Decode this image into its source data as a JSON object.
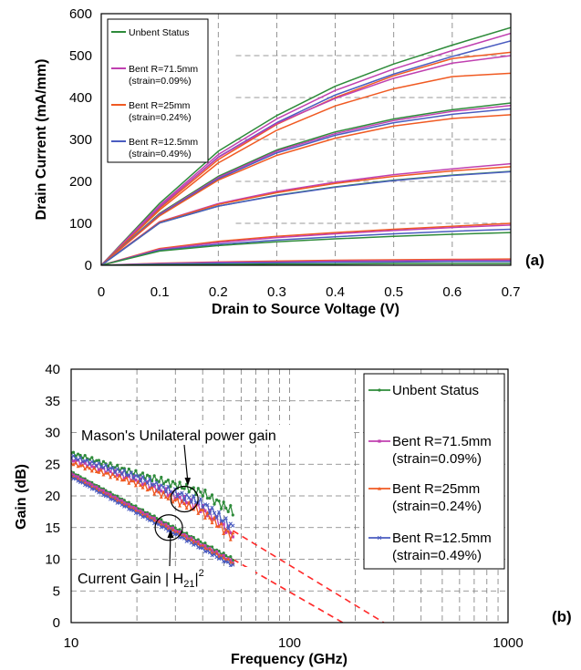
{
  "colors": {
    "unbent": "#2e8b3a",
    "bent_71_5": "#c040b0",
    "bent_25": "#f05a22",
    "bent_12_5": "#4a5cc0",
    "extrapolation": "#ff2a2a"
  },
  "chart_data": [
    {
      "type": "line",
      "panel_label": "(a)",
      "xlabel": "Drain to Source Voltage (V)",
      "ylabel": "Drain Current (mA/mm)",
      "xlim": [
        0,
        0.7
      ],
      "ylim": [
        0,
        600
      ],
      "x_ticks": [
        "0",
        "0.1",
        "0.2",
        "0.3",
        "0.4",
        "0.5",
        "0.6",
        "0.7"
      ],
      "y_ticks": [
        "0",
        "100",
        "200",
        "300",
        "400",
        "500",
        "600"
      ],
      "grid": "dashed, upper-right",
      "legend_position": "top-left",
      "legend": [
        {
          "line1": "Unbent Status",
          "line2": "",
          "color_key": "unbent"
        },
        {
          "line1": "Bent R=71.5mm",
          "line2": "(strain=0.09%)",
          "color_key": "bent_71_5"
        },
        {
          "line1": "Bent R=25mm",
          "line2": "(strain=0.24%)",
          "color_key": "bent_25"
        },
        {
          "line1": "Bent R=12.5mm",
          "line2": "(strain=0.49%)",
          "color_key": "bent_12_5"
        }
      ],
      "x": [
        0,
        0.1,
        0.2,
        0.3,
        0.4,
        0.5,
        0.6,
        0.7
      ],
      "series": [
        {
          "color_key": "unbent",
          "values": [
            0,
            148,
            272,
            357,
            427,
            480,
            525,
            567
          ]
        },
        {
          "color_key": "bent_71_5",
          "values": [
            0,
            143,
            264,
            349,
            417,
            468,
            512,
            553
          ]
        },
        {
          "color_key": "bent_25",
          "values": [
            0,
            136,
            252,
            336,
            400,
            452,
            493,
            508
          ]
        },
        {
          "color_key": "bent_12_5",
          "values": [
            0,
            139,
            258,
            340,
            406,
            456,
            498,
            535
          ]
        },
        {
          "color_key": "bent_71_5",
          "values": [
            0,
            140,
            257,
            338,
            398,
            446,
            482,
            500
          ]
        },
        {
          "color_key": "bent_25",
          "values": [
            0,
            132,
            244,
            322,
            380,
            421,
            450,
            458
          ]
        },
        {
          "color_key": "unbent",
          "values": [
            0,
            124,
            212,
            275,
            318,
            349,
            371,
            387
          ]
        },
        {
          "color_key": "bent_71_5",
          "values": [
            0,
            122,
            209,
            272,
            314,
            345,
            367,
            381
          ]
        },
        {
          "color_key": "bent_12_5",
          "values": [
            0,
            120,
            206,
            268,
            310,
            340,
            360,
            373
          ]
        },
        {
          "color_key": "bent_25",
          "values": [
            0,
            118,
            203,
            262,
            303,
            332,
            350,
            359
          ]
        },
        {
          "color_key": "bent_71_5",
          "values": [
            0,
            104,
            147,
            176,
            198,
            216,
            230,
            242
          ]
        },
        {
          "color_key": "bent_25",
          "values": [
            0,
            103,
            145,
            173,
            195,
            212,
            225,
            235
          ]
        },
        {
          "color_key": "unbent",
          "values": [
            0,
            101,
            141,
            167,
            187,
            203,
            215,
            224
          ]
        },
        {
          "color_key": "bent_12_5",
          "values": [
            0,
            101,
            141,
            166,
            186,
            202,
            214,
            223
          ]
        },
        {
          "color_key": "bent_25",
          "values": [
            0,
            40,
            57,
            69,
            78,
            86,
            93,
            100
          ]
        },
        {
          "color_key": "bent_71_5",
          "values": [
            0,
            38,
            54,
            66,
            75,
            83,
            90,
            96
          ]
        },
        {
          "color_key": "bent_12_5",
          "values": [
            0,
            36,
            50,
            60,
            68,
            75,
            81,
            86
          ]
        },
        {
          "color_key": "unbent",
          "values": [
            0,
            34,
            47,
            56,
            63,
            69,
            74,
            78
          ]
        },
        {
          "color_key": "bent_25",
          "values": [
            0,
            5,
            8,
            10,
            12,
            13,
            14,
            15
          ]
        },
        {
          "color_key": "bent_71_5",
          "values": [
            0,
            4,
            7,
            8,
            10,
            11,
            12,
            12
          ]
        },
        {
          "color_key": "bent_12_5",
          "values": [
            0,
            3,
            5,
            6,
            7,
            8,
            9,
            9
          ]
        },
        {
          "color_key": "unbent",
          "values": [
            0,
            1,
            2,
            3,
            3,
            4,
            4,
            4
          ]
        }
      ]
    },
    {
      "type": "line",
      "panel_label": "(b)",
      "xlabel": "Frequency (GHz)",
      "ylabel": "Gain (dB)",
      "x_scale": "log",
      "xlim": [
        10,
        1000
      ],
      "ylim": [
        0,
        40
      ],
      "x_ticks": [
        "10",
        "100",
        "1000"
      ],
      "y_ticks": [
        "0",
        "5",
        "10",
        "15",
        "20",
        "25",
        "30",
        "35",
        "40"
      ],
      "grid": "dashed",
      "legend_position": "right",
      "legend": [
        {
          "line1": "Unbent Status",
          "line2": "",
          "color_key": "unbent",
          "marker": "circle"
        },
        {
          "line1": "Bent R=71.5mm",
          "line2": "(strain=0.09%)",
          "color_key": "bent_71_5",
          "marker": "square"
        },
        {
          "line1": "Bent R=25mm",
          "line2": "(strain=0.24%)",
          "color_key": "bent_25",
          "marker": "triangle"
        },
        {
          "line1": "Bent R=12.5mm",
          "line2": "(strain=0.49%)",
          "color_key": "bent_12_5",
          "marker": "x"
        }
      ],
      "annotations": {
        "mason": "Mason's Unilateral power gain",
        "current_gain": "Current Gain | H",
        "current_gain_sub": "21",
        "current_gain_close": "|",
        "current_gain_sup": "2"
      },
      "mason_series": [
        {
          "color_key": "unbent",
          "x": [
            10,
            20,
            30,
            40,
            55
          ],
          "values": [
            26.8,
            23.5,
            21.8,
            20.5,
            17.5
          ]
        },
        {
          "color_key": "bent_71_5",
          "x": [
            10,
            20,
            30,
            40,
            55
          ],
          "values": [
            25.8,
            22.5,
            20.0,
            18.0,
            14.0
          ]
        },
        {
          "color_key": "bent_25",
          "x": [
            10,
            20,
            30,
            40,
            55
          ],
          "values": [
            25.2,
            22.0,
            19.3,
            17.5,
            13.5
          ]
        },
        {
          "color_key": "bent_12_5",
          "x": [
            10,
            20,
            30,
            40,
            55
          ],
          "values": [
            26.2,
            23.0,
            20.5,
            18.8,
            15.0
          ]
        }
      ],
      "current_gain_series": [
        {
          "color_key": "unbent",
          "x": [
            10,
            55
          ],
          "values": [
            23.8,
            10.0
          ]
        },
        {
          "color_key": "bent_71_5",
          "x": [
            10,
            55
          ],
          "values": [
            23.5,
            9.6
          ]
        },
        {
          "color_key": "bent_25",
          "x": [
            10,
            55
          ],
          "values": [
            23.2,
            9.4
          ]
        },
        {
          "color_key": "bent_12_5",
          "x": [
            10,
            55
          ],
          "values": [
            23.0,
            9.0
          ]
        }
      ],
      "extrapolations": [
        {
          "x": [
            55,
            270
          ],
          "values": [
            14.5,
            0
          ]
        },
        {
          "x": [
            55,
            175
          ],
          "values": [
            10.0,
            0
          ]
        }
      ],
      "highlight_circles": [
        {
          "x": 33,
          "y": 19.5
        },
        {
          "x": 28,
          "y": 15.0
        }
      ]
    }
  ]
}
